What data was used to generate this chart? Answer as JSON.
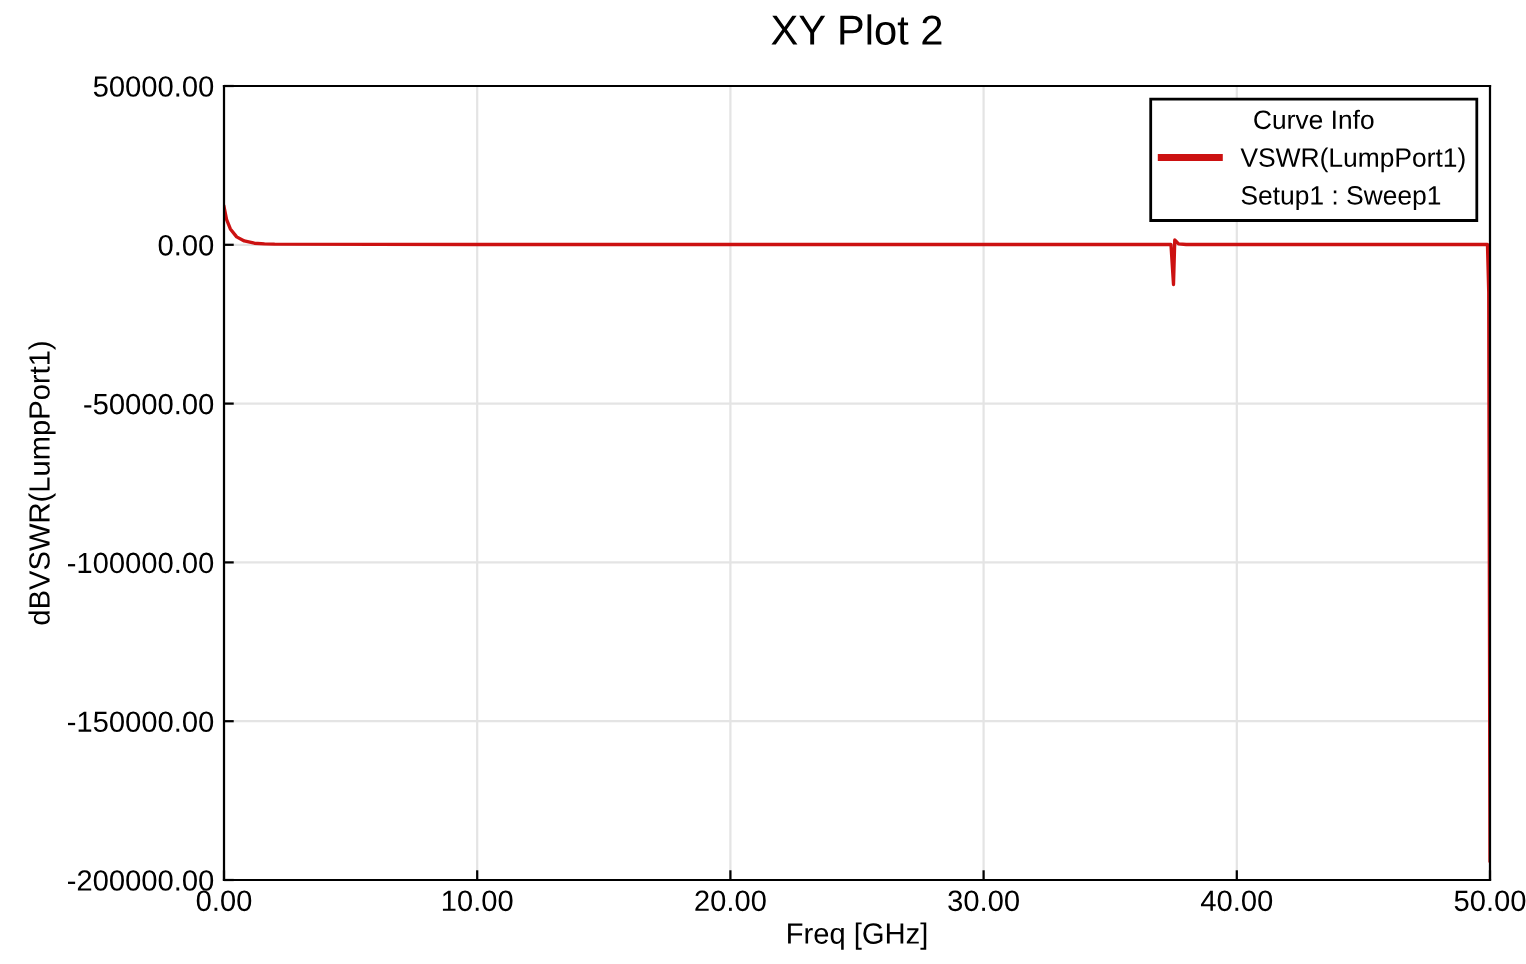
{
  "chart_data": {
    "type": "line",
    "title": "XY Plot 2",
    "xlabel": "Freq [GHz]",
    "ylabel": "dBVSWR(LumpPort1)",
    "legend_title": "Curve Info",
    "annotations": [
      "Setup1 : Sweep1"
    ],
    "series": [
      {
        "name": "VSWR(LumpPort1)",
        "color": "#cc1111",
        "x": [
          0,
          0.1,
          0.25,
          0.5,
          0.8,
          1.2,
          1.6,
          2,
          10,
          20,
          30,
          37.4,
          37.5,
          37.55,
          37.7,
          38,
          45,
          49.9,
          49.95,
          50
        ],
        "values": [
          12000,
          8000,
          5000,
          2500,
          1200,
          500,
          300,
          200,
          100,
          100,
          100,
          100,
          -12500,
          1500,
          300,
          100,
          100,
          100,
          -15000,
          -194000
        ]
      }
    ],
    "xlim": [
      0,
      50
    ],
    "ylim": [
      -200000,
      50000
    ],
    "xticks": [
      {
        "value": 0,
        "label": "0.00"
      },
      {
        "value": 10,
        "label": "10.00"
      },
      {
        "value": 20,
        "label": "20.00"
      },
      {
        "value": 30,
        "label": "30.00"
      },
      {
        "value": 40,
        "label": "40.00"
      },
      {
        "value": 50,
        "label": "50.00"
      }
    ],
    "yticks": [
      {
        "value": 50000,
        "label": "50000.00"
      },
      {
        "value": 0,
        "label": "0.00"
      },
      {
        "value": -50000,
        "label": "-50000.00"
      },
      {
        "value": -100000,
        "label": "-100000.00"
      },
      {
        "value": -150000,
        "label": "-150000.00"
      },
      {
        "value": -200000,
        "label": "-200000.00"
      }
    ],
    "grid": true,
    "legend": "top right",
    "marker": "none",
    "line_style": "solid"
  }
}
